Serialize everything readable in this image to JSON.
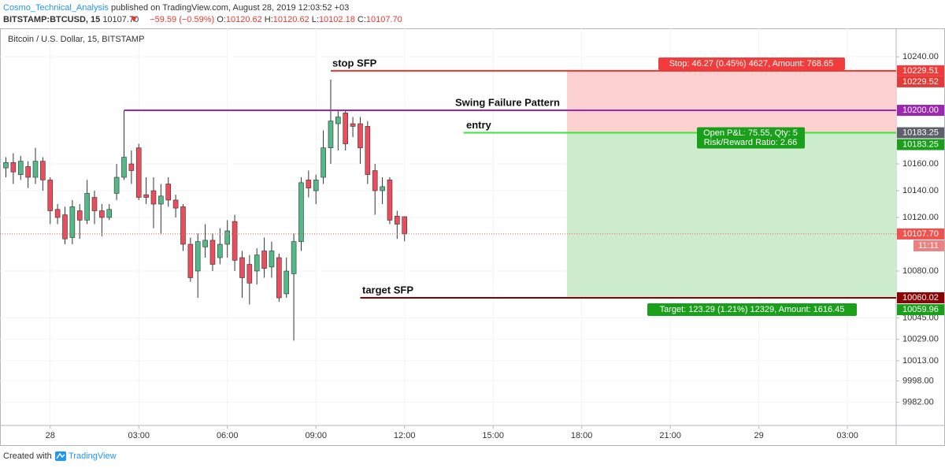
{
  "header": {
    "author": "Cosmo_Technical_Analysis",
    "published": "published on TradingView.com, August 28, 2019 12:03:52 +03",
    "symbol": "BITSTAMP:BTCUSD, 15",
    "last": "10107.70",
    "change": "−59.59 (−0.59%)",
    "ohlc": [
      {
        "label": "O:",
        "value": "10120.62"
      },
      {
        "label": "H:",
        "value": "10120.62"
      },
      {
        "label": "L:",
        "value": "10102.18"
      },
      {
        "label": "C:",
        "value": "10107.70"
      }
    ]
  },
  "chart_data": {
    "type": "candlestick",
    "title": "Bitcoin / U.S. Dollar, 15, BITSTAMP",
    "x": [
      -1.5,
      -1.25,
      -1,
      -0.75,
      -0.5,
      -0.25,
      0,
      0.25,
      0.5,
      0.75,
      1,
      1.25,
      1.5,
      1.75,
      2,
      2.25,
      2.5,
      2.75,
      3,
      3.25,
      3.5,
      3.75,
      4,
      4.25,
      4.5,
      4.75,
      5,
      5.25,
      5.5,
      5.75,
      6,
      6.25,
      6.5,
      6.75,
      7,
      7.25,
      7.5,
      7.75,
      8,
      8.25,
      8.5,
      8.75,
      9,
      9.25,
      9.5,
      9.75,
      10,
      10.25,
      10.5,
      10.75,
      11,
      11.25,
      11.5,
      11.75,
      12
    ],
    "open": [
      10157,
      10161,
      10152,
      10158,
      10150,
      10162,
      10148,
      10126,
      10122,
      10105,
      10125,
      10118,
      10135,
      10125,
      10120,
      10138,
      10150,
      10160,
      10172,
      10137,
      10140,
      10130,
      10145,
      10133,
      10128,
      10100,
      10080,
      10098,
      10103,
      10090,
      10100,
      10117,
      10090,
      10085,
      10080,
      10095,
      10083,
      10090,
      10063,
      10078,
      10102,
      10148,
      10140,
      10150,
      10172,
      10190,
      10198,
      10190,
      10190,
      10188,
      10155,
      10140,
      10148,
      10121,
      10120.62
    ],
    "high": [
      10165,
      10168,
      10166,
      10162,
      10172,
      10165,
      10150,
      10130,
      10128,
      10133,
      10130,
      10148,
      10140,
      10130,
      10130,
      10160,
      10200,
      10170,
      10175,
      10150,
      10150,
      10145,
      10150,
      10137,
      10130,
      10105,
      10108,
      10115,
      10108,
      10112,
      10118,
      10122,
      10095,
      10092,
      10097,
      10105,
      10102,
      10093,
      10090,
      10108,
      10150,
      10155,
      10152,
      10185,
      10223,
      10200,
      10200,
      10195,
      10195,
      10192,
      10160,
      10150,
      10150,
      10125,
      10120.62
    ],
    "low": [
      10150,
      10145,
      10148,
      10142,
      10145,
      10140,
      10115,
      10115,
      10100,
      10100,
      10104,
      10115,
      10115,
      10106,
      10118,
      10133,
      10148,
      10145,
      10133,
      10130,
      10112,
      10108,
      10128,
      10120,
      10095,
      10072,
      10060,
      10090,
      10080,
      10085,
      10090,
      10080,
      10060,
      10055,
      10070,
      10075,
      10075,
      10057,
      10060,
      10028,
      10095,
      10135,
      10130,
      10145,
      10160,
      10170,
      10170,
      10180,
      10160,
      10145,
      10122,
      10130,
      10115,
      10104,
      10102.18
    ],
    "close": [
      10161,
      10154,
      10162,
      10150,
      10162,
      10148,
      10125,
      10120,
      10104,
      10128,
      10118,
      10138,
      10125,
      10120,
      10126,
      10150,
      10165,
      10155,
      10135,
      10135,
      10130,
      10136,
      10133,
      10127,
      10100,
      10075,
      10102,
      10103,
      10085,
      10100,
      10110,
      10088,
      10075,
      10071,
      10092,
      10082,
      10095,
      10060,
      10080,
      10102,
      10146,
      10142,
      10148,
      10172,
      10192,
      10195,
      10175,
      10188,
      10172,
      10152,
      10140,
      10143,
      10118,
      10115,
      10107.7
    ],
    "up_color": "#53b987",
    "down_color": "#eb4d5c",
    "xlim": [
      -1.7,
      28.65
    ],
    "ylim": [
      9964.7,
      10261.2
    ],
    "xticks": [
      {
        "value": 0,
        "label": "28"
      },
      {
        "value": 3,
        "label": "03:00"
      },
      {
        "value": 6,
        "label": "06:00"
      },
      {
        "value": 9,
        "label": "09:00"
      },
      {
        "value": 12,
        "label": "12:00"
      },
      {
        "value": 15,
        "label": "15:00"
      },
      {
        "value": 18,
        "label": "18:00"
      },
      {
        "value": 21,
        "label": "21:00"
      },
      {
        "value": 24,
        "label": "29"
      },
      {
        "value": 27,
        "label": "03:00"
      }
    ],
    "yticks": [
      {
        "value": 10240,
        "label": "10240.00"
      },
      {
        "value": 10160,
        "label": "10160.00"
      },
      {
        "value": 10140,
        "label": "10140.00"
      },
      {
        "value": 10120,
        "label": "10120.00"
      },
      {
        "value": 10080,
        "label": "10080.00"
      },
      {
        "value": 10045,
        "label": "10045.00"
      },
      {
        "value": 10029,
        "label": "10029.00"
      },
      {
        "value": 10013,
        "label": "10013.00"
      },
      {
        "value": 9998,
        "label": "9998.00"
      },
      {
        "value": 9982,
        "label": "9982.00"
      }
    ],
    "grid": true,
    "lines": [
      {
        "label": "stop SFP",
        "value": 10229.52,
        "x_start": 9.5,
        "color": "#e53935"
      },
      {
        "label": "Swing Failure Pattern",
        "value": 10200,
        "x_start": 2.5,
        "color": "#9c27b0"
      },
      {
        "label": "entry",
        "value": 10183.25,
        "x_start": 14,
        "color": "#39e639"
      },
      {
        "label": "target SFP",
        "value": 10060.02,
        "x_start": 10.5,
        "color": "#8b0000"
      }
    ],
    "position": {
      "stop": 10229.51,
      "entry": 10183.25,
      "target": 10059.96,
      "x_start": 17.5,
      "stop_text": "Stop: 46.27 (0.45%) 4627, Amount: 768.65",
      "pnl_text": "Open P&L: 75.55, Qty: 5",
      "rr_text": "Risk/Reward Ratio: 2.66",
      "target_text": "Target: 123.29 (1.21%) 12329, Amount: 1616.45"
    },
    "price_labels": [
      {
        "value": 10229.51,
        "label": "10229.51",
        "color": "#f23b3b"
      },
      {
        "value": 10229.52,
        "label": "10229.52",
        "color": "#e53935"
      },
      {
        "value": 10200,
        "label": "10200.00",
        "color": "#9c27b0"
      },
      {
        "value": 10183.25,
        "label": "10183.25",
        "color": "#5d606b"
      },
      {
        "value": 10183.25,
        "label": "10183.25",
        "color": "#1a9f1a"
      },
      {
        "value": 10107.7,
        "label": "10107.70",
        "color": "#ef5350"
      },
      {
        "value": 10060.02,
        "label": "10060.02",
        "color": "#8b0000"
      },
      {
        "value": 10059.96,
        "label": "10059.96",
        "color": "#1a9f1a"
      }
    ],
    "countdown": "11:11"
  },
  "footer": {
    "created": "Created with",
    "brand": "TradingView"
  }
}
